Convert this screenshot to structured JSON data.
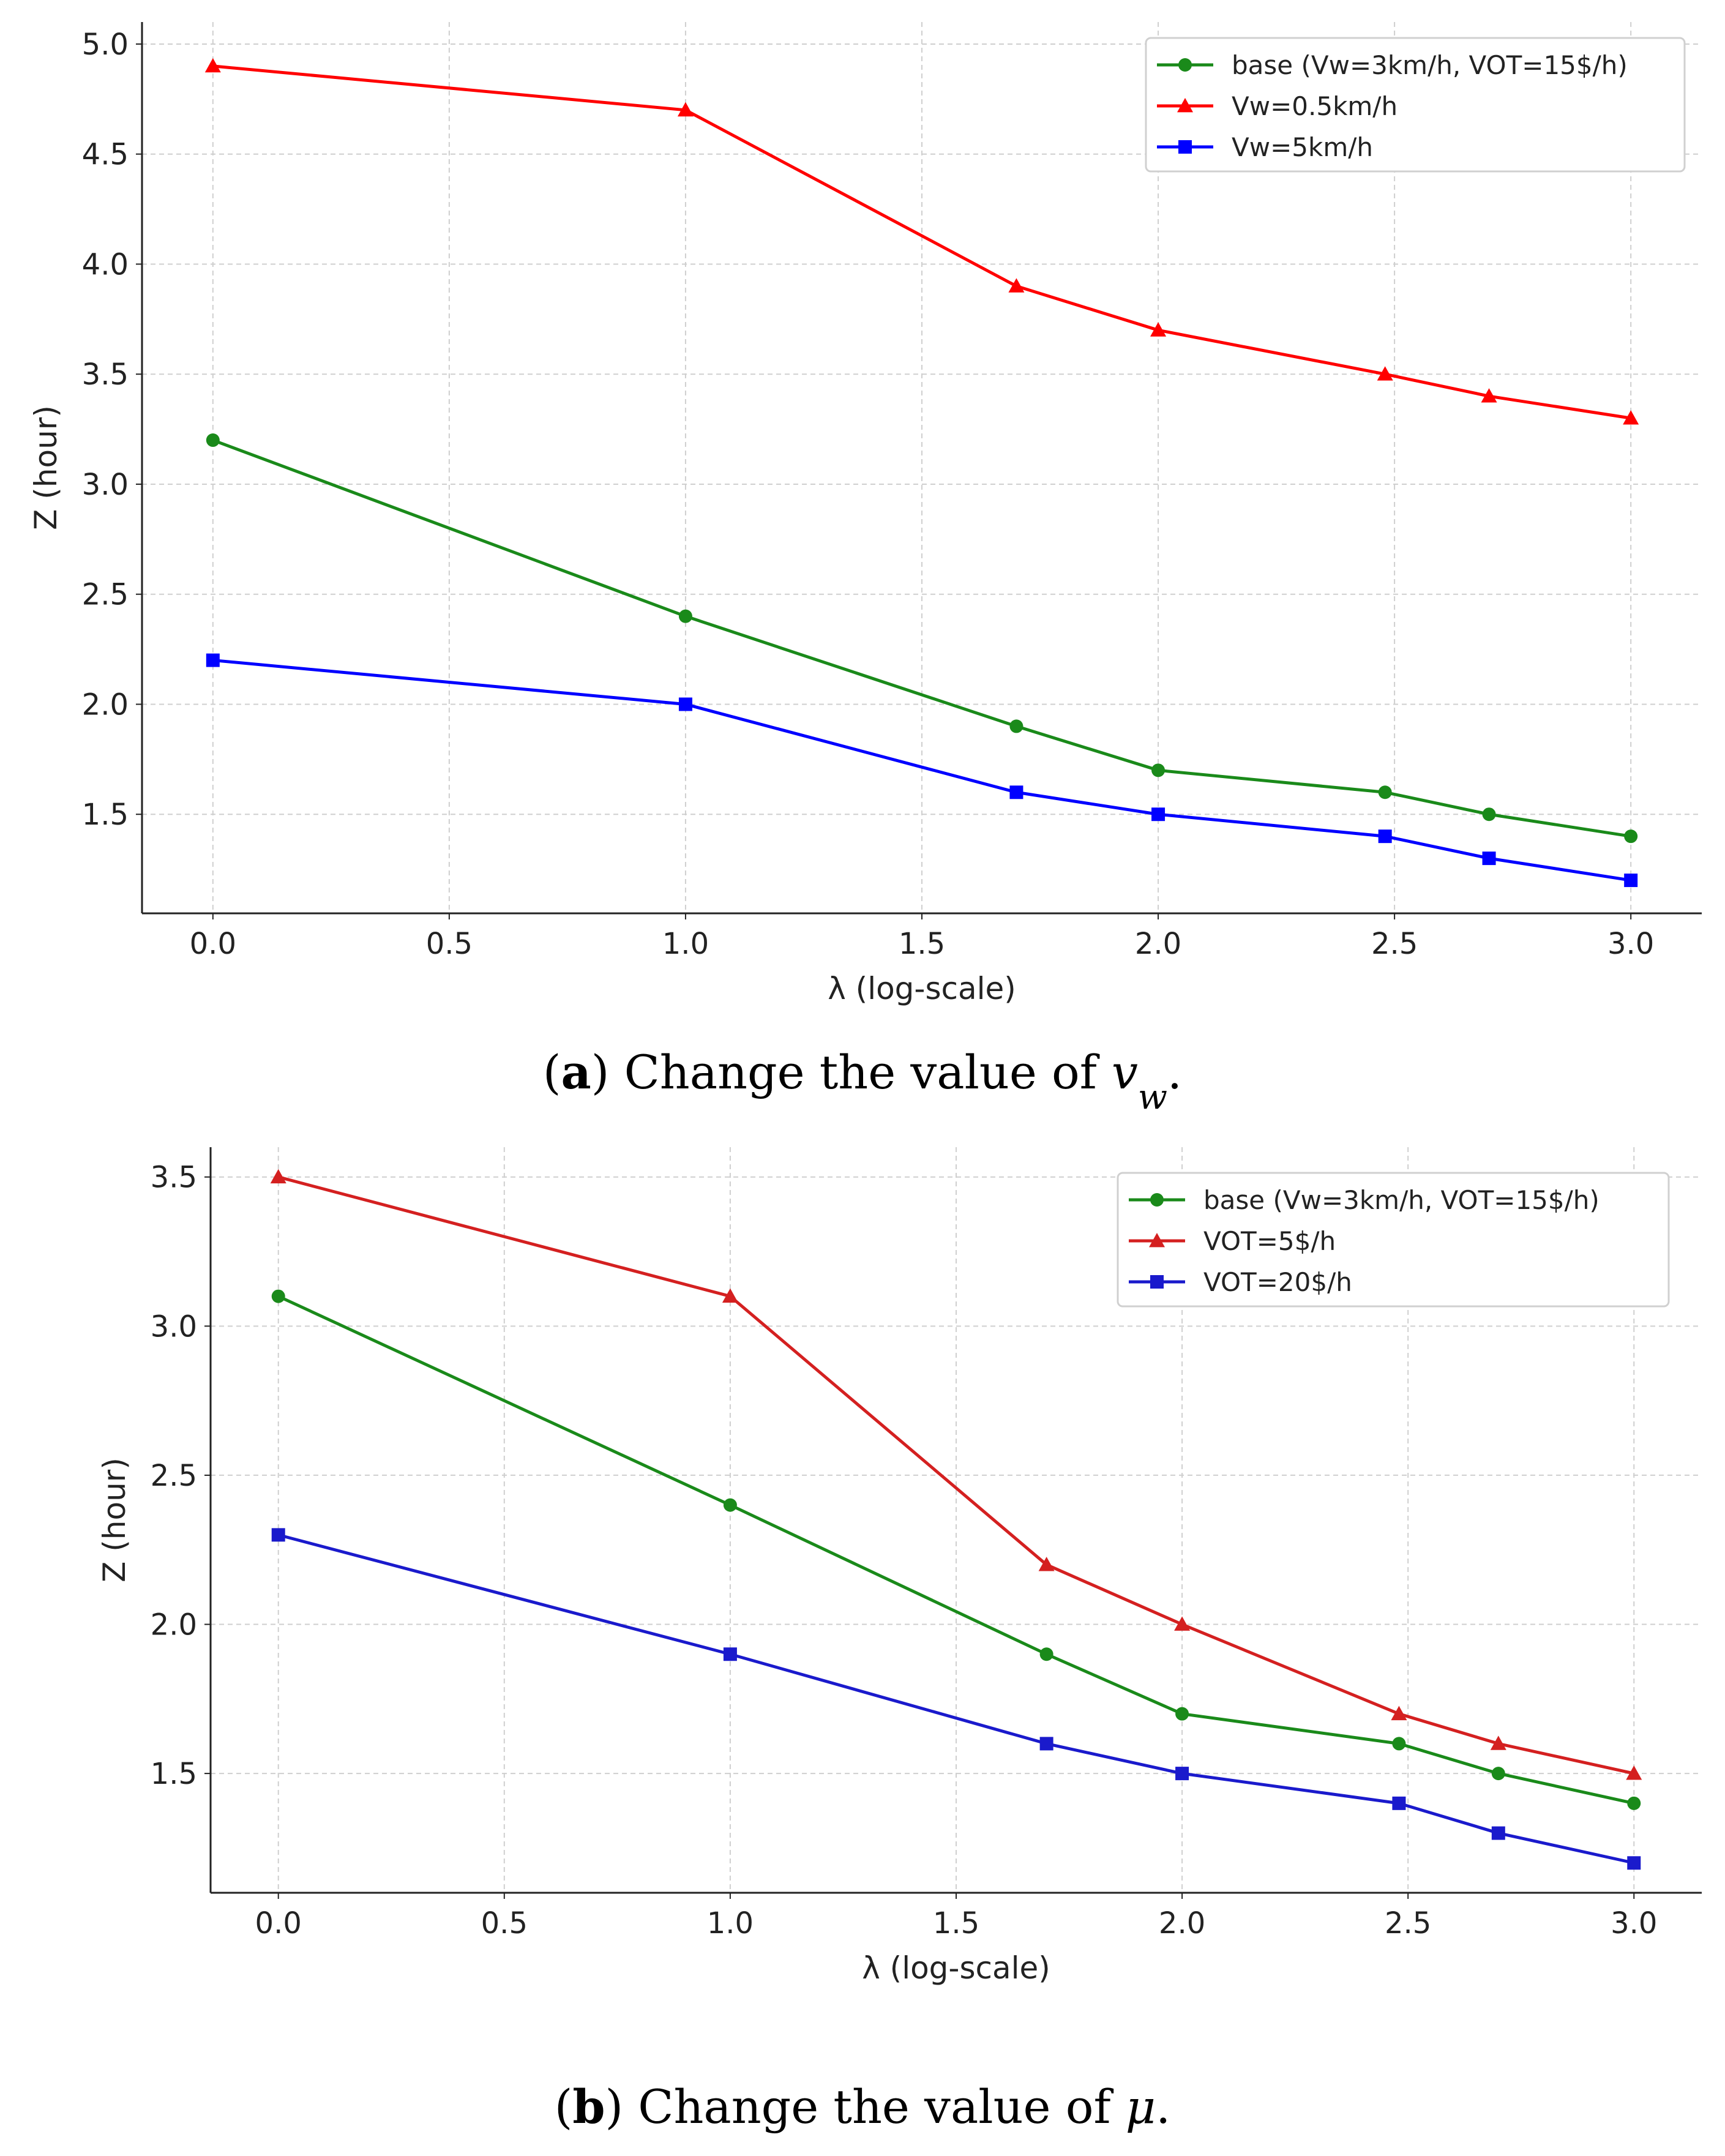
{
  "chart_data": [
    {
      "type": "line",
      "title": "",
      "xlabel": "λ (log-scale)",
      "ylabel": "Z (hour)",
      "xlim": [
        -0.15,
        3.15
      ],
      "ylim": [
        1.05,
        5.1
      ],
      "xticks": [
        "0.0",
        "0.5",
        "1.0",
        "1.5",
        "2.0",
        "2.5",
        "3.0"
      ],
      "yticks": [
        "1.5",
        "2.0",
        "2.5",
        "3.0",
        "3.5",
        "4.0",
        "4.5",
        "5.0"
      ],
      "grid": true,
      "legend_position": "top-right",
      "x": [
        0.0,
        1.0,
        1.7,
        2.0,
        2.48,
        2.7,
        3.0
      ],
      "series": [
        {
          "name": "base (Vw=3km/h, VOT=15$/h)",
          "color": "#1a8a1a",
          "marker": "circle",
          "values": [
            3.2,
            2.4,
            1.9,
            1.7,
            1.6,
            1.5,
            1.4
          ]
        },
        {
          "name": "Vw=0.5km/h",
          "color": "#ff0000",
          "marker": "triangle",
          "values": [
            4.9,
            4.7,
            3.9,
            3.7,
            3.5,
            3.4,
            3.3
          ]
        },
        {
          "name": "Vw=5km/h",
          "color": "#0000ff",
          "marker": "square",
          "values": [
            2.2,
            2.0,
            1.6,
            1.5,
            1.4,
            1.3,
            1.2
          ]
        }
      ],
      "caption": {
        "letter": "a",
        "text": "Change the value of",
        "symbol": "v",
        "subscript": "w",
        "end": "."
      }
    },
    {
      "type": "line",
      "title": "",
      "xlabel": "λ (log-scale)",
      "ylabel": "Z (hour)",
      "xlim": [
        -0.15,
        3.15
      ],
      "ylim": [
        1.1,
        3.6
      ],
      "xticks": [
        "0.0",
        "0.5",
        "1.0",
        "1.5",
        "2.0",
        "2.5",
        "3.0"
      ],
      "yticks": [
        "1.5",
        "2.0",
        "2.5",
        "3.0",
        "3.5"
      ],
      "grid": true,
      "legend_position": "top-right",
      "x": [
        0.0,
        1.0,
        1.7,
        2.0,
        2.48,
        2.7,
        3.0
      ],
      "series": [
        {
          "name": "base (Vw=3km/h, VOT=15$/h)",
          "color": "#1a8a1a",
          "marker": "circle",
          "values": [
            3.1,
            2.4,
            1.9,
            1.7,
            1.6,
            1.5,
            1.4
          ]
        },
        {
          "name": "VOT=5$/h",
          "color": "#d42020",
          "marker": "triangle",
          "values": [
            3.5,
            3.1,
            2.2,
            2.0,
            1.7,
            1.6,
            1.5
          ]
        },
        {
          "name": "VOT=20$/h",
          "color": "#1a1acc",
          "marker": "square",
          "values": [
            2.3,
            1.9,
            1.6,
            1.5,
            1.4,
            1.3,
            1.2
          ]
        }
      ],
      "caption": {
        "letter": "b",
        "text": "Change the value of",
        "symbol": "μ",
        "subscript": "",
        "end": "."
      }
    }
  ]
}
